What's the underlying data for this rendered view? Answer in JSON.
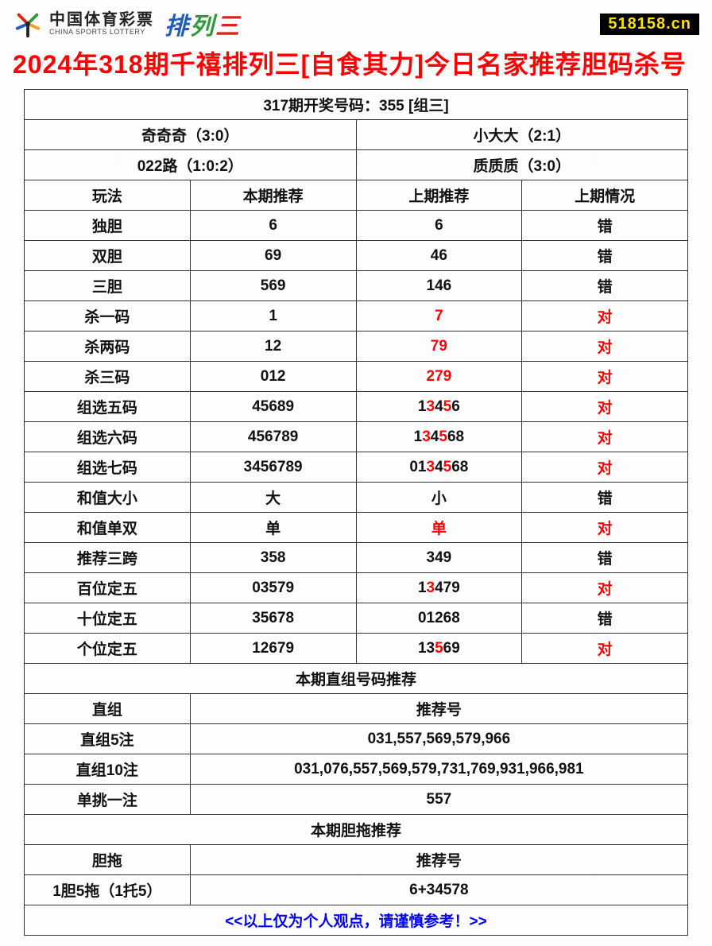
{
  "header": {
    "logo_cn": "中国体育彩票",
    "logo_en": "CHINA SPORTS LOTTERY",
    "paisan": [
      "排",
      "列",
      "三"
    ],
    "site_badge": "518158.cn"
  },
  "title": "2024年318期千禧排列三[自食其力]今日名家推荐胆码杀号",
  "draw_header": "317期开奖号码：355 [组三]",
  "info_row1": {
    "left": "奇奇奇（3:0）",
    "right": "小大大（2:1）"
  },
  "info_row2": {
    "left": "022路（1:0:2）",
    "right": "质质质（3:0）"
  },
  "columns": {
    "c1": "玩法",
    "c2": "本期推荐",
    "c3": "上期推荐",
    "c4": "上期情况"
  },
  "rows": [
    {
      "name": "独胆",
      "current": "6",
      "prev": [
        {
          "t": "6",
          "c": "k"
        }
      ],
      "result": "错",
      "result_color": "k"
    },
    {
      "name": "双胆",
      "current": "69",
      "prev": [
        {
          "t": "46",
          "c": "k"
        }
      ],
      "result": "错",
      "result_color": "k"
    },
    {
      "name": "三胆",
      "current": "569",
      "prev": [
        {
          "t": "146",
          "c": "k"
        }
      ],
      "result": "错",
      "result_color": "k"
    },
    {
      "name": "杀一码",
      "current": "1",
      "prev": [
        {
          "t": "7",
          "c": "r"
        }
      ],
      "result": "对",
      "result_color": "r"
    },
    {
      "name": "杀两码",
      "current": "12",
      "prev": [
        {
          "t": "79",
          "c": "r"
        }
      ],
      "result": "对",
      "result_color": "r"
    },
    {
      "name": "杀三码",
      "current": "012",
      "prev": [
        {
          "t": "279",
          "c": "r"
        }
      ],
      "result": "对",
      "result_color": "r"
    },
    {
      "name": "组选五码",
      "current": "45689",
      "prev": [
        {
          "t": "1",
          "c": "k"
        },
        {
          "t": "3",
          "c": "r"
        },
        {
          "t": "4",
          "c": "k"
        },
        {
          "t": "5",
          "c": "r"
        },
        {
          "t": "6",
          "c": "k"
        }
      ],
      "result": "对",
      "result_color": "r"
    },
    {
      "name": "组选六码",
      "current": "456789",
      "prev": [
        {
          "t": "1",
          "c": "k"
        },
        {
          "t": "3",
          "c": "r"
        },
        {
          "t": "4",
          "c": "k"
        },
        {
          "t": "5",
          "c": "r"
        },
        {
          "t": "68",
          "c": "k"
        }
      ],
      "result": "对",
      "result_color": "r"
    },
    {
      "name": "组选七码",
      "current": "3456789",
      "prev": [
        {
          "t": "01",
          "c": "k"
        },
        {
          "t": "3",
          "c": "r"
        },
        {
          "t": "4",
          "c": "k"
        },
        {
          "t": "5",
          "c": "r"
        },
        {
          "t": "68",
          "c": "k"
        }
      ],
      "result": "对",
      "result_color": "r"
    },
    {
      "name": "和值大小",
      "current": "大",
      "prev": [
        {
          "t": "小",
          "c": "k"
        }
      ],
      "result": "错",
      "result_color": "k"
    },
    {
      "name": "和值单双",
      "current": "单",
      "prev": [
        {
          "t": "单",
          "c": "r"
        }
      ],
      "result": "对",
      "result_color": "r"
    },
    {
      "name": "推荐三跨",
      "current": "358",
      "prev": [
        {
          "t": "349",
          "c": "k"
        }
      ],
      "result": "错",
      "result_color": "k"
    },
    {
      "name": "百位定五",
      "current": "03579",
      "prev": [
        {
          "t": "1",
          "c": "k"
        },
        {
          "t": "3",
          "c": "r"
        },
        {
          "t": "479",
          "c": "k"
        }
      ],
      "result": "对",
      "result_color": "r"
    },
    {
      "name": "十位定五",
      "current": "35678",
      "prev": [
        {
          "t": "01268",
          "c": "k"
        }
      ],
      "result": "错",
      "result_color": "k"
    },
    {
      "name": "个位定五",
      "current": "12679",
      "prev": [
        {
          "t": "13",
          "c": "k"
        },
        {
          "t": "5",
          "c": "r"
        },
        {
          "t": "69",
          "c": "k"
        }
      ],
      "result": "对",
      "result_color": "r"
    }
  ],
  "section2_header": "本期直组号码推荐",
  "section2_cols": {
    "left": "直组",
    "right": "推荐号"
  },
  "section2_rows": [
    {
      "name": "直组5注",
      "value": "031,557,569,579,966"
    },
    {
      "name": "直组10注",
      "value": "031,076,557,569,579,731,769,931,966,981"
    },
    {
      "name": "单挑一注",
      "value": "557"
    }
  ],
  "section3_header": "本期胆拖推荐",
  "section3_cols": {
    "left": "胆拖",
    "right": "推荐号"
  },
  "section3_rows": [
    {
      "name": "1胆5拖（1托5）",
      "value": "6+34578"
    }
  ],
  "footer": "<<以上仅为个人观点，请谨慎参考！>>",
  "colors": {
    "title_red": "#ff0000",
    "highlight_red": "#ff0000",
    "footer_blue": "#0000ff",
    "border": "#333333",
    "text": "#111111",
    "badge_bg": "#000000",
    "badge_fg": "#ffe100"
  }
}
